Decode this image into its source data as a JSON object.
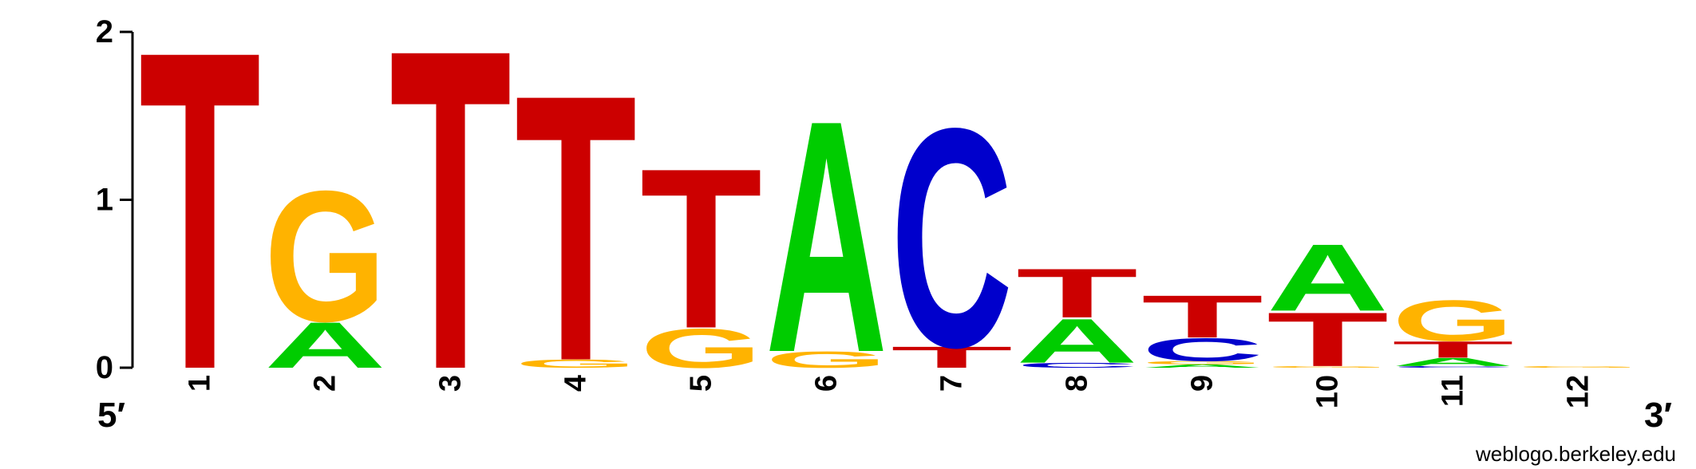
{
  "chart_data": {
    "type": "sequence_logo",
    "ylim": [
      0,
      2
    ],
    "y_ticks": [
      "0",
      "1",
      "2"
    ],
    "positions": [
      "1",
      "2",
      "3",
      "4",
      "5",
      "6",
      "7",
      "8",
      "9",
      "10",
      "11",
      "12"
    ],
    "end_labels": {
      "left": "5′",
      "right": "3′"
    },
    "credit": "weblogo.berkeley.edu",
    "colors": {
      "A": "#00cc00",
      "C": "#0000cc",
      "G": "#ffb300",
      "T": "#cc0000"
    },
    "stacks": [
      [
        {
          "base": "T",
          "height": 1.95
        }
      ],
      [
        {
          "base": "A",
          "height": 0.28
        },
        {
          "base": "G",
          "height": 0.8
        }
      ],
      [
        {
          "base": "T",
          "height": 1.96
        }
      ],
      [
        {
          "base": "G",
          "height": 0.05
        },
        {
          "base": "T",
          "height": 1.63
        }
      ],
      [
        {
          "base": "G",
          "height": 0.24
        },
        {
          "base": "T",
          "height": 0.98
        }
      ],
      [
        {
          "base": "G",
          "height": 0.1
        },
        {
          "base": "A",
          "height": 1.42
        }
      ],
      [
        {
          "base": "T",
          "height": 0.13
        },
        {
          "base": "C",
          "height": 1.34
        }
      ],
      [
        {
          "base": "C",
          "height": 0.03
        },
        {
          "base": "A",
          "height": 0.27
        },
        {
          "base": "T",
          "height": 0.3
        }
      ],
      [
        {
          "base": "A",
          "height": 0.02
        },
        {
          "base": "G",
          "height": 0.02
        },
        {
          "base": "C",
          "height": 0.14
        },
        {
          "base": "T",
          "height": 0.26
        }
      ],
      [
        {
          "base": "G",
          "height": 0.01
        },
        {
          "base": "T",
          "height": 0.33
        },
        {
          "base": "A",
          "height": 0.41
        }
      ],
      [
        {
          "base": "C",
          "height": 0.01
        },
        {
          "base": "A",
          "height": 0.05
        },
        {
          "base": "T",
          "height": 0.1
        },
        {
          "base": "G",
          "height": 0.25
        }
      ],
      [
        {
          "base": "G",
          "height": 0.01
        }
      ]
    ]
  }
}
